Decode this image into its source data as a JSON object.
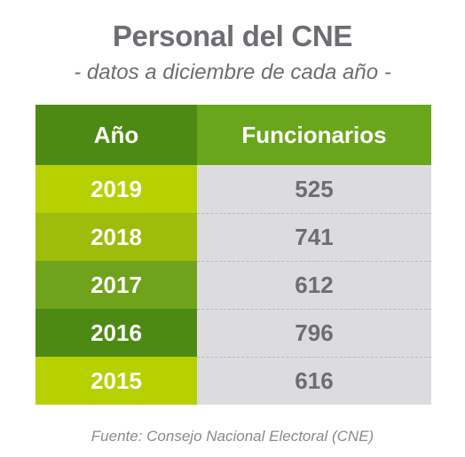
{
  "title": "Personal del CNE",
  "subtitle": "- datos a diciembre de cada año -",
  "source": "Fuente: Consejo Nacional Electoral (CNE)",
  "table": {
    "headers": {
      "year": "Año",
      "value": "Funcionarios"
    },
    "rows": [
      {
        "year": "2019",
        "value": "525",
        "color": "#b7d000"
      },
      {
        "year": "2018",
        "value": "741",
        "color": "#9dbd0a"
      },
      {
        "year": "2017",
        "value": "612",
        "color": "#70a31c"
      },
      {
        "year": "2016",
        "value": "796",
        "color": "#4d8a13"
      },
      {
        "year": "2015",
        "value": "616",
        "color": "#b7d000"
      }
    ]
  },
  "colors": {
    "header_year_bg": "#4d8a13",
    "header_value_bg": "#6aa61c",
    "value_cell_bg": "#dcdcde",
    "text_gray": "#6d6e71"
  },
  "chart_data": {
    "type": "table",
    "title": "Personal del CNE",
    "subtitle": "- datos a diciembre de cada año -",
    "columns": [
      "Año",
      "Funcionarios"
    ],
    "categories": [
      "2019",
      "2018",
      "2017",
      "2016",
      "2015"
    ],
    "values": [
      525,
      741,
      612,
      796,
      616
    ]
  }
}
